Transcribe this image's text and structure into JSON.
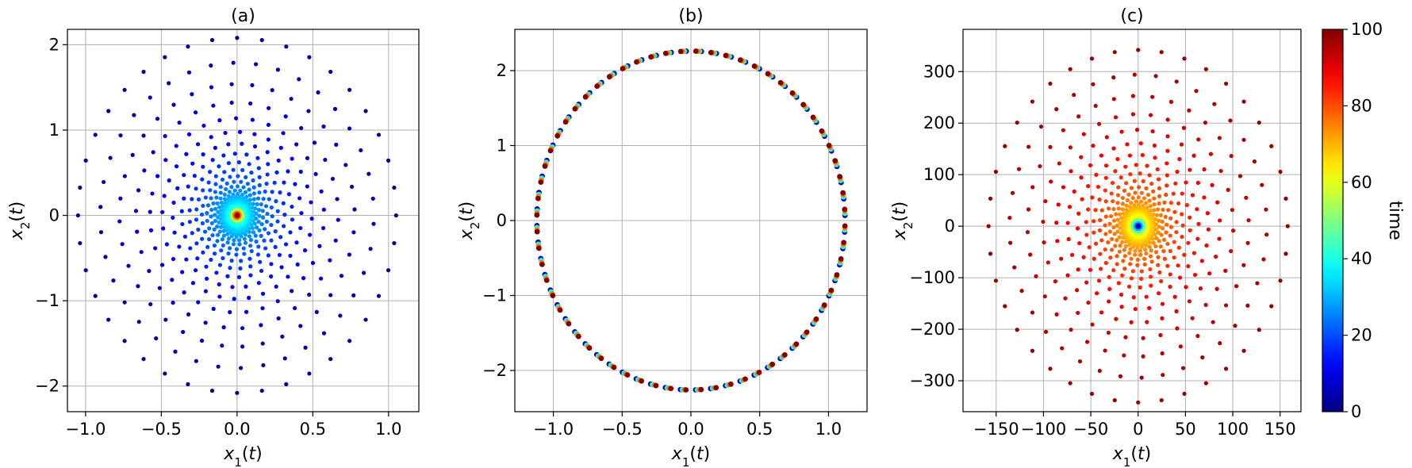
{
  "colors": {
    "colormap": "jet",
    "grid": "#b0b0b0",
    "frame": "#000000"
  },
  "colorbar": {
    "label": "time",
    "range": [
      0,
      100
    ],
    "ticks": [
      "0",
      "20",
      "40",
      "60",
      "80",
      "100"
    ]
  },
  "chart_data": [
    {
      "type": "scatter",
      "title": "(a)",
      "xlabel": "x_1(t)",
      "ylabel": "x_2(t)",
      "xlim": [
        -1.12,
        1.2
      ],
      "ylim": [
        -2.3,
        2.18
      ],
      "xticks": [
        "−1.0",
        "−0.5",
        "0.0",
        "0.5",
        "1.0"
      ],
      "yticks": [
        "−2",
        "−1",
        "0",
        "1",
        "2"
      ],
      "xtick_values": [
        -1.0,
        -0.5,
        0.0,
        0.5,
        1.0
      ],
      "ytick_values": [
        -2,
        -1,
        0,
        1,
        2
      ],
      "grid": true,
      "description": "spiral contracting toward origin over time",
      "time_range": [
        0,
        100
      ],
      "outer_radius_x": 1.05,
      "outer_radius_y": 2.08,
      "num_rings": 25,
      "points_per_ring": 40,
      "color_direction": "decay"
    },
    {
      "type": "scatter",
      "title": "(b)",
      "xlabel": "x_1(t)",
      "ylabel": "x_2(t)",
      "xlim": [
        -1.28,
        1.28
      ],
      "ylim": [
        -2.55,
        2.55
      ],
      "xticks": [
        "−1.0",
        "−0.5",
        "0.0",
        "0.5",
        "1.0"
      ],
      "yticks": [
        "−2",
        "−1",
        "0",
        "1",
        "2"
      ],
      "xtick_values": [
        -1.0,
        -0.5,
        0.0,
        0.5,
        1.0
      ],
      "ytick_values": [
        -2,
        -1,
        0,
        1,
        2
      ],
      "grid": true,
      "description": "stable limit cycle",
      "time_range": [
        0,
        100
      ],
      "outer_radius_x": 1.12,
      "outer_radius_y": 2.26,
      "num_rings": 1,
      "points_per_ring": 64,
      "color_direction": "cycle"
    },
    {
      "type": "scatter",
      "title": "(c)",
      "xlabel": "x_1(t)",
      "ylabel": "x_2(t)",
      "xlim": [
        -185,
        172
      ],
      "ylim": [
        -360,
        382
      ],
      "xticks": [
        "−150",
        "−100",
        "−50",
        "0",
        "50",
        "100",
        "150"
      ],
      "yticks": [
        "−300",
        "−200",
        "−100",
        "0",
        "100",
        "200",
        "300"
      ],
      "xtick_values": [
        -150,
        -100,
        -50,
        0,
        50,
        100,
        150
      ],
      "ytick_values": [
        -300,
        -200,
        -100,
        0,
        100,
        200,
        300
      ],
      "grid": true,
      "description": "spiral expanding away from origin over time",
      "time_range": [
        0,
        100
      ],
      "outer_radius_x": 158,
      "outer_radius_y": 342,
      "num_rings": 25,
      "points_per_ring": 40,
      "color_direction": "growth"
    }
  ]
}
